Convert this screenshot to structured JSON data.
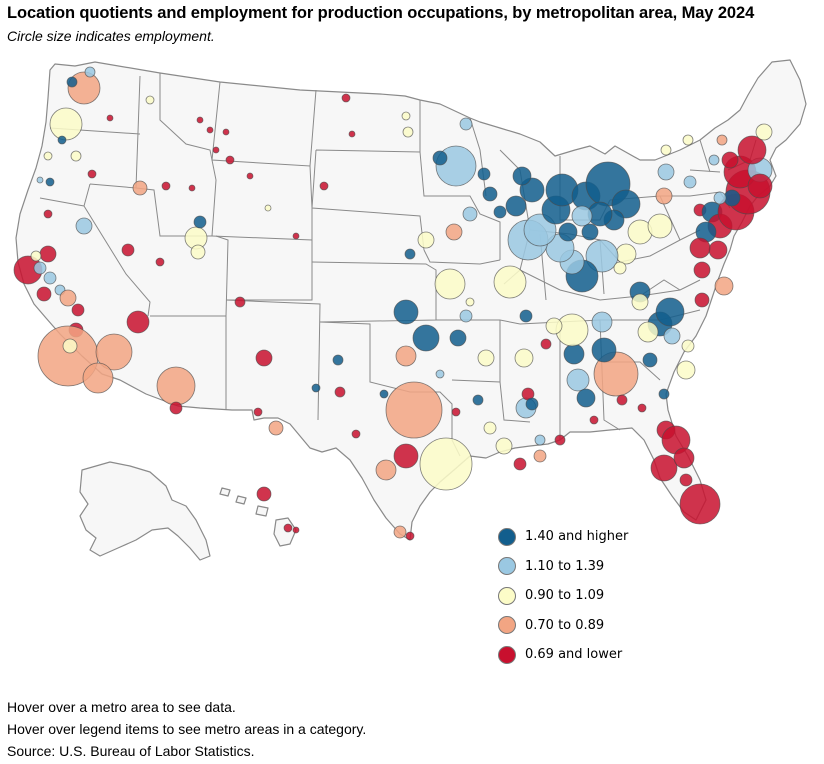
{
  "header": {
    "title": "Location quotients and employment for production occupations, by metropolitan area, May 2024",
    "subtitle": "Circle size indicates employment."
  },
  "legend": {
    "items": [
      {
        "label": "1.40 and higher",
        "color": "#125e8d"
      },
      {
        "label": "1.10 to 1.39",
        "color": "#9ac8e2"
      },
      {
        "label": "0.90 to 1.09",
        "color": "#fcfcc8"
      },
      {
        "label": "0.70 to 0.89",
        "color": "#f2a583"
      },
      {
        "label": "0.69 and lower",
        "color": "#c8102e"
      }
    ]
  },
  "notes": {
    "hover_metro": "Hover over a metro area to see data.",
    "hover_legend": "Hover over legend items to see metro areas in a category.",
    "source": "Source: U.S. Bureau of Labor Statistics."
  },
  "map": {
    "land_color": "#f7f7f7",
    "border_color": "#8a8a8a"
  }
}
